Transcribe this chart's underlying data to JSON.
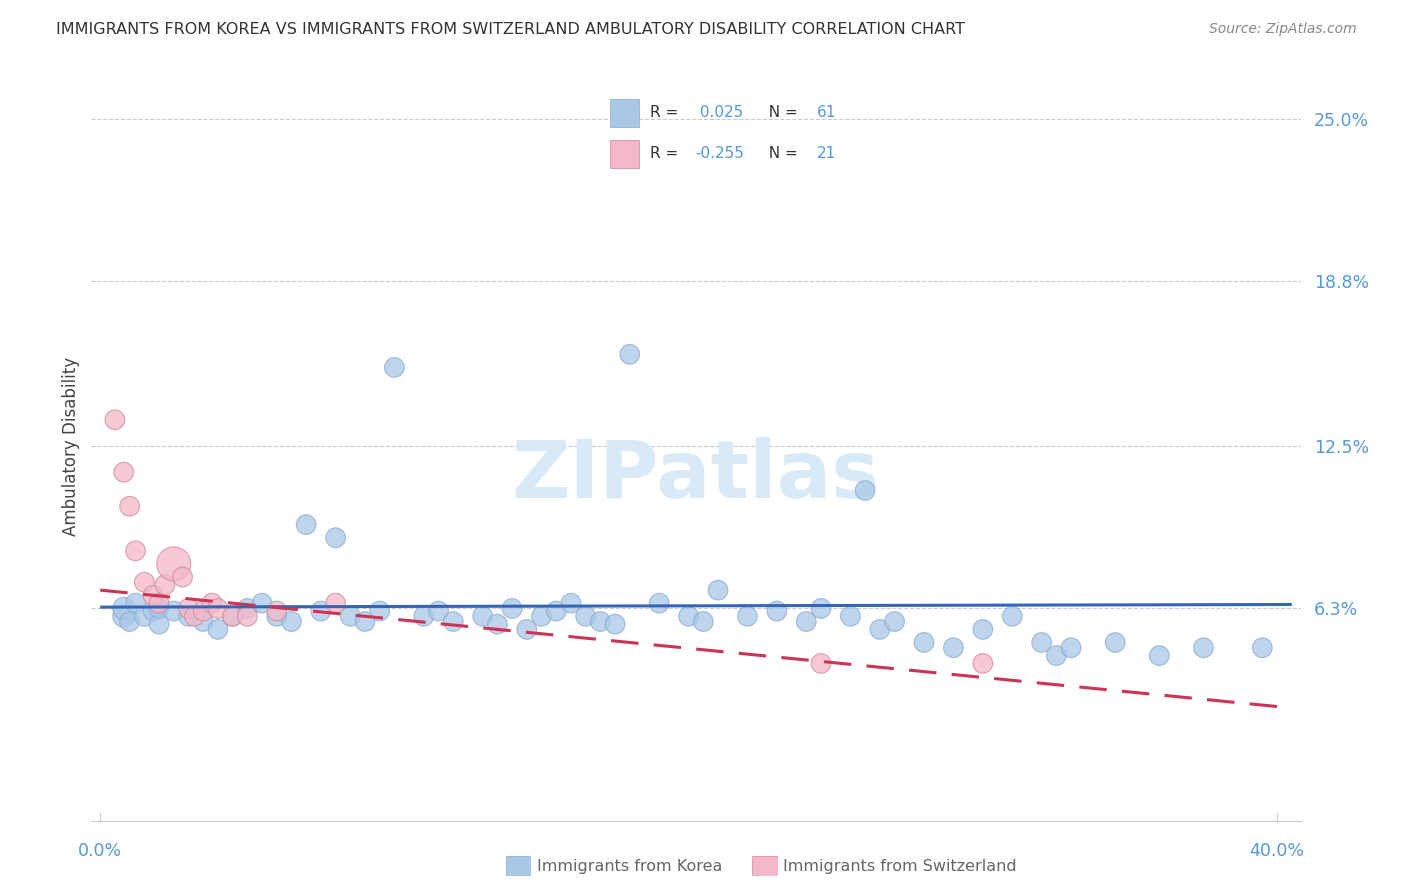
{
  "title": "IMMIGRANTS FROM KOREA VS IMMIGRANTS FROM SWITZERLAND AMBULATORY DISABILITY CORRELATION CHART",
  "source": "Source: ZipAtlas.com",
  "ylabel": "Ambulatory Disability",
  "ytick_values": [
    0.063,
    0.125,
    0.188,
    0.25
  ],
  "ytick_labels": [
    "6.3%",
    "12.5%",
    "18.8%",
    "25.0%"
  ],
  "xlim": [
    -0.003,
    0.408
  ],
  "ylim": [
    -0.018,
    0.268
  ],
  "korea_R": 0.025,
  "korea_N": 61,
  "switzerland_R": -0.255,
  "switzerland_N": 21,
  "korea_color": "#a8c8e8",
  "korea_edge_color": "#88aacc",
  "korea_line_color": "#3366bb",
  "switzerland_color": "#f4b8c8",
  "switzerland_edge_color": "#cc8899",
  "switzerland_line_color": "#cc3355",
  "watermark_color": "#d8eaf8",
  "grid_color": "#cccccc",
  "spine_color": "#cccccc",
  "title_color": "#333333",
  "source_color": "#888888",
  "ylabel_color": "#444444",
  "tick_label_color": "#5599dd",
  "legend_edge_color": "#cccccc",
  "bottom_label_color": "#666666",
  "korea_line_y0": 0.0635,
  "korea_line_y1": 0.0645,
  "switz_line_y0": 0.07,
  "switz_line_y1": 0.025,
  "korea_x": [
    0.008,
    0.008,
    0.01,
    0.012,
    0.015,
    0.018,
    0.02,
    0.02,
    0.025,
    0.03,
    0.035,
    0.04,
    0.045,
    0.05,
    0.055,
    0.06,
    0.065,
    0.07,
    0.075,
    0.08,
    0.085,
    0.09,
    0.095,
    0.1,
    0.11,
    0.115,
    0.12,
    0.13,
    0.135,
    0.14,
    0.145,
    0.15,
    0.155,
    0.16,
    0.165,
    0.17,
    0.175,
    0.18,
    0.19,
    0.2,
    0.205,
    0.21,
    0.22,
    0.23,
    0.24,
    0.245,
    0.255,
    0.26,
    0.265,
    0.27,
    0.28,
    0.29,
    0.3,
    0.31,
    0.32,
    0.325,
    0.33,
    0.345,
    0.36,
    0.375,
    0.395
  ],
  "korea_y": [
    0.06,
    0.063,
    0.058,
    0.065,
    0.06,
    0.062,
    0.057,
    0.063,
    0.062,
    0.06,
    0.058,
    0.055,
    0.06,
    0.063,
    0.065,
    0.06,
    0.058,
    0.095,
    0.062,
    0.09,
    0.06,
    0.058,
    0.062,
    0.155,
    0.06,
    0.062,
    0.058,
    0.06,
    0.057,
    0.063,
    0.055,
    0.06,
    0.062,
    0.065,
    0.06,
    0.058,
    0.057,
    0.16,
    0.065,
    0.06,
    0.058,
    0.07,
    0.06,
    0.062,
    0.058,
    0.063,
    0.06,
    0.108,
    0.055,
    0.058,
    0.05,
    0.048,
    0.055,
    0.06,
    0.05,
    0.045,
    0.048,
    0.05,
    0.045,
    0.048,
    0.048
  ],
  "korea_sizes": [
    250,
    250,
    200,
    200,
    200,
    200,
    200,
    200,
    200,
    200,
    200,
    200,
    200,
    200,
    200,
    200,
    200,
    200,
    200,
    200,
    200,
    200,
    200,
    200,
    200,
    200,
    200,
    200,
    200,
    200,
    200,
    200,
    200,
    200,
    200,
    200,
    200,
    200,
    200,
    200,
    200,
    200,
    200,
    200,
    200,
    200,
    200,
    200,
    200,
    200,
    200,
    200,
    200,
    200,
    200,
    200,
    200,
    200,
    200,
    200,
    200
  ],
  "switz_x": [
    0.005,
    0.008,
    0.01,
    0.012,
    0.015,
    0.018,
    0.02,
    0.022,
    0.025,
    0.028,
    0.03,
    0.032,
    0.035,
    0.038,
    0.04,
    0.045,
    0.05,
    0.06,
    0.08,
    0.245,
    0.3
  ],
  "switz_y": [
    0.135,
    0.115,
    0.102,
    0.085,
    0.073,
    0.068,
    0.065,
    0.072,
    0.08,
    0.075,
    0.063,
    0.06,
    0.062,
    0.065,
    0.063,
    0.06,
    0.06,
    0.062,
    0.065,
    0.042,
    0.042
  ],
  "switz_sizes": [
    200,
    200,
    200,
    200,
    200,
    200,
    200,
    200,
    600,
    200,
    200,
    200,
    200,
    200,
    200,
    200,
    200,
    200,
    200,
    200,
    200
  ]
}
